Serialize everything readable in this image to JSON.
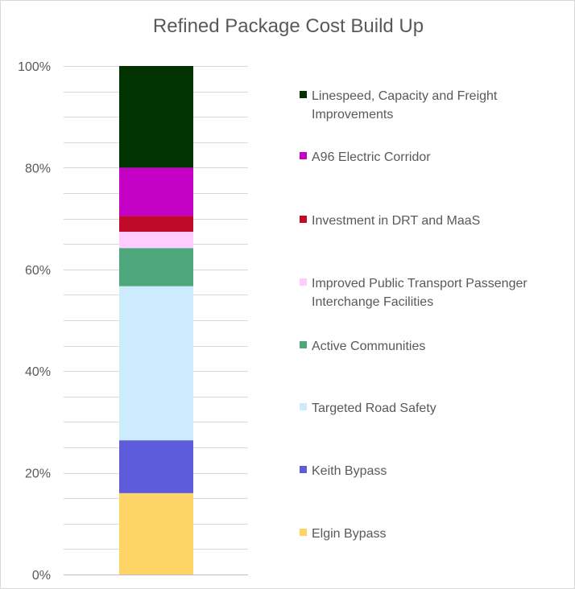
{
  "chart_data": {
    "type": "bar",
    "stacked": true,
    "percent_stacked": true,
    "title": "Refined Package Cost Build Up",
    "xlabel": "",
    "ylabel": "",
    "ylim": [
      0,
      100
    ],
    "y_ticks": [
      "0%",
      "20%",
      "40%",
      "60%",
      "80%",
      "100%"
    ],
    "y_tick_values": [
      0,
      20,
      40,
      60,
      80,
      100
    ],
    "grid": true,
    "legend_position": "right",
    "series": [
      {
        "name": "Elgin Bypass",
        "value": 16.0,
        "color": "#FFD466"
      },
      {
        "name": "Keith Bypass",
        "value": 10.4,
        "color": "#5E5CDB"
      },
      {
        "name": "Targeted Road Safety",
        "value": 30.3,
        "color": "#CCEBFC"
      },
      {
        "name": "Active Communities",
        "value": 7.5,
        "color": "#4EA77A"
      },
      {
        "name": "Improved Public Transport Passenger Interchange Facilities",
        "value": 3.2,
        "color": "#FFCCFF"
      },
      {
        "name": "Investment in DRT and MaaS",
        "value": 3.1,
        "color": "#C00A2A"
      },
      {
        "name": "A96 Electric Corridor",
        "value": 9.5,
        "color": "#C400C4"
      },
      {
        "name": "Linespeed, Capacity and Freight Improvements",
        "value": 20.0,
        "color": "#003300"
      }
    ]
  }
}
